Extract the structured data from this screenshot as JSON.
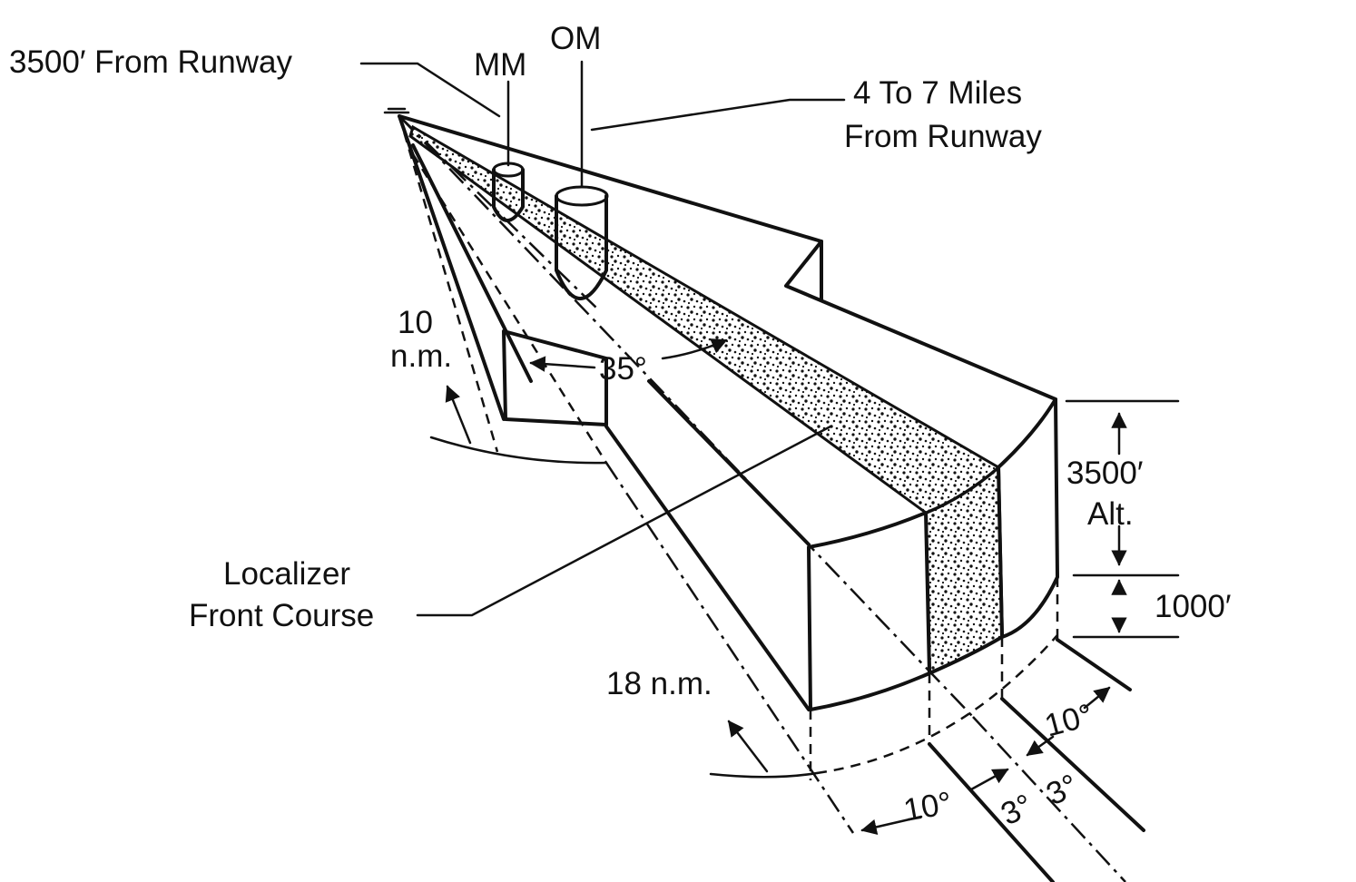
{
  "labels": {
    "distance_from_runway_mm": "3500′ From Runway",
    "mm": "MM",
    "om": "OM",
    "om_distance_line1": "4 To 7 Miles",
    "om_distance_line2": "From Runway",
    "ten_nm_line1": "10",
    "ten_nm_line2": "n.m.",
    "angle_35": "35°",
    "localizer_line1": "Localizer",
    "localizer_line2": "Front Course",
    "altitude_line1": "3500′",
    "altitude_line2": "Alt.",
    "height_1000": "1000′",
    "eighteen_nm": "18 n.m.",
    "angle_10_right": "10°",
    "angle_10_bottom": "10°",
    "angle_3_left": "3°",
    "angle_3_right": "3°"
  }
}
